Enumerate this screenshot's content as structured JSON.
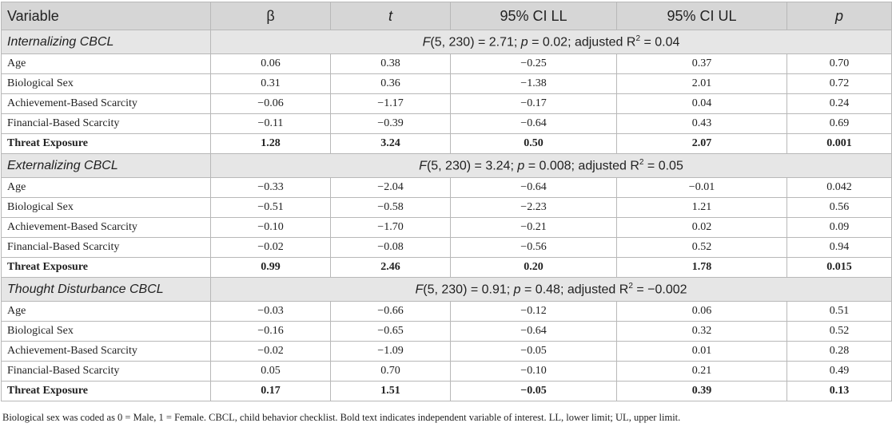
{
  "table": {
    "header": [
      {
        "text": "Variable"
      },
      {
        "text": "β"
      },
      {
        "text": "t",
        "italic": true
      },
      {
        "text": "95% CI LL"
      },
      {
        "text": "95% CI UL"
      },
      {
        "text": "p",
        "italic": true
      }
    ],
    "sections": [
      {
        "name": "Internalizing CBCL",
        "stat": [
          {
            "text": "F",
            "italic": true
          },
          {
            "text": "(5, 230) = 2.71; "
          },
          {
            "text": "p",
            "italic": true
          },
          {
            "text": " = 0.02; adjusted R"
          },
          {
            "text": "2",
            "sup": true
          },
          {
            "text": " = 0.04"
          }
        ],
        "rows": [
          {
            "label": "Age",
            "cells": [
              "0.06",
              "0.38",
              "−0.25",
              "0.37",
              "0.70"
            ]
          },
          {
            "label": "Biological Sex",
            "cells": [
              "0.31",
              "0.36",
              "−1.38",
              "2.01",
              "0.72"
            ]
          },
          {
            "label": "Achievement-Based Scarcity",
            "cells": [
              "−0.06",
              "−1.17",
              "−0.17",
              "0.04",
              "0.24"
            ]
          },
          {
            "label": "Financial-Based Scarcity",
            "cells": [
              "−0.11",
              "−0.39",
              "−0.64",
              "0.43",
              "0.69"
            ]
          },
          {
            "label": "Threat Exposure",
            "bold": true,
            "cells": [
              "1.28",
              "3.24",
              "0.50",
              "2.07",
              "0.001"
            ]
          }
        ]
      },
      {
        "name": "Externalizing CBCL",
        "stat": [
          {
            "text": "F",
            "italic": true
          },
          {
            "text": "(5, 230) = 3.24; "
          },
          {
            "text": "p",
            "italic": true
          },
          {
            "text": " = 0.008; adjusted R"
          },
          {
            "text": "2",
            "sup": true
          },
          {
            "text": " = 0.05"
          }
        ],
        "rows": [
          {
            "label": "Age",
            "cells": [
              "−0.33",
              "−2.04",
              "−0.64",
              "−0.01",
              "0.042"
            ]
          },
          {
            "label": "Biological Sex",
            "cells": [
              "−0.51",
              "−0.58",
              "−2.23",
              "1.21",
              "0.56"
            ]
          },
          {
            "label": "Achievement-Based Scarcity",
            "cells": [
              "−0.10",
              "−1.70",
              "−0.21",
              "0.02",
              "0.09"
            ]
          },
          {
            "label": "Financial-Based Scarcity",
            "cells": [
              "−0.02",
              "−0.08",
              "−0.56",
              "0.52",
              "0.94"
            ]
          },
          {
            "label": "Threat Exposure",
            "bold": true,
            "cells": [
              "0.99",
              "2.46",
              "0.20",
              "1.78",
              "0.015"
            ]
          }
        ]
      },
      {
        "name": "Thought Disturbance CBCL",
        "stat": [
          {
            "text": "F",
            "italic": true
          },
          {
            "text": "(5, 230) = 0.91; "
          },
          {
            "text": "p",
            "italic": true
          },
          {
            "text": " = 0.48; adjusted R"
          },
          {
            "text": "2",
            "sup": true
          },
          {
            "text": " = −0.002"
          }
        ],
        "rows": [
          {
            "label": "Age",
            "cells": [
              "−0.03",
              "−0.66",
              "−0.12",
              "0.06",
              "0.51"
            ]
          },
          {
            "label": "Biological Sex",
            "cells": [
              "−0.16",
              "−0.65",
              "−0.64",
              "0.32",
              "0.52"
            ]
          },
          {
            "label": "Achievement-Based Scarcity",
            "cells": [
              "−0.02",
              "−1.09",
              "−0.05",
              "0.01",
              "0.28"
            ]
          },
          {
            "label": "Financial-Based Scarcity",
            "cells": [
              "0.05",
              "0.70",
              "−0.10",
              "0.21",
              "0.49"
            ]
          },
          {
            "label": "Threat Exposure",
            "bold": true,
            "cells": [
              "0.17",
              "1.51",
              "−0.05",
              "0.39",
              "0.13"
            ]
          }
        ]
      }
    ]
  },
  "footnote": "Biological sex was coded as 0 = Male, 1 = Female. CBCL, child behavior checklist. Bold text indicates independent variable of interest. LL, lower limit; UL, upper limit."
}
